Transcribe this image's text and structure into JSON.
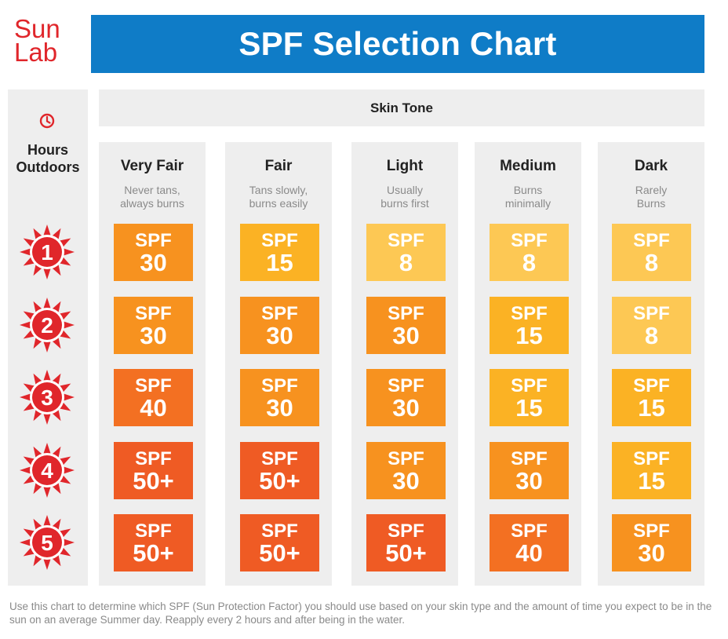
{
  "logo": {
    "line1": "Sun",
    "line2": "Lab"
  },
  "title": "SPF Selection Chart",
  "hours_label": "Hours\nOutdoors",
  "skin_tone_label": "Skin Tone",
  "colors": {
    "title_bar": "#0f7cc7",
    "logo": "#e0262b",
    "panel": "#eeeeee",
    "sun": "#e0262b",
    "spf_8": "#fdc854",
    "spf_15": "#fbb224",
    "spf_30": "#f7921f",
    "spf_40": "#f37022",
    "spf_50_plus": "#ef5b24"
  },
  "chart_data": {
    "type": "table",
    "title": "SPF Selection Chart",
    "row_header": "Hours Outdoors",
    "column_header": "Skin Tone",
    "hours": [
      "1",
      "2",
      "3",
      "4",
      "5"
    ],
    "skin_tones": [
      {
        "name": "Very Fair",
        "desc": "Never tans,\nalways burns"
      },
      {
        "name": "Fair",
        "desc": "Tans slowly,\nburns easily"
      },
      {
        "name": "Light",
        "desc": "Usually\nburns first"
      },
      {
        "name": "Medium",
        "desc": "Burns\nminimally"
      },
      {
        "name": "Dark",
        "desc": "Rarely\nBurns"
      }
    ],
    "cell_prefix": "SPF",
    "values": [
      [
        "30",
        "15",
        "8",
        "8",
        "8"
      ],
      [
        "30",
        "30",
        "30",
        "15",
        "8"
      ],
      [
        "40",
        "30",
        "30",
        "15",
        "15"
      ],
      [
        "50+",
        "50+",
        "30",
        "30",
        "15"
      ],
      [
        "50+",
        "50+",
        "50+",
        "40",
        "30"
      ]
    ]
  },
  "footnote": "Use this chart to determine which SPF (Sun Protection Factor) you should use based on your skin type and the amount of time you expect to be in the sun on an average Summer day. Reapply every 2 hours and after being in the water."
}
